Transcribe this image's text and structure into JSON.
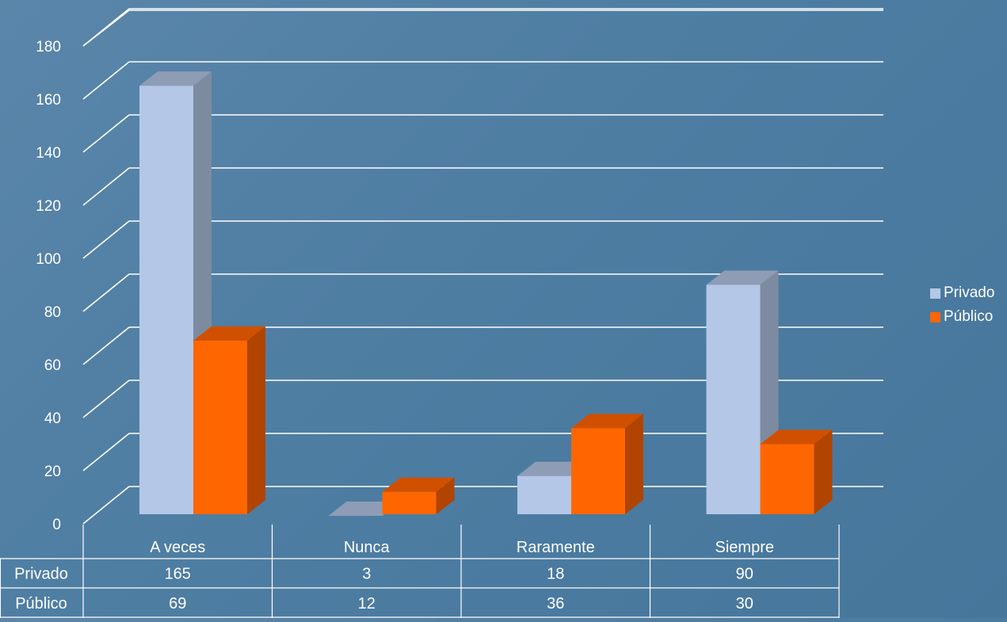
{
  "chart_data": {
    "type": "bar",
    "style": "3d-clustered-column",
    "categories": [
      "A veces",
      "Nunca",
      "Raramente",
      "Siempre"
    ],
    "series": [
      {
        "name": "Privado",
        "values": [
          165,
          3,
          18,
          90
        ],
        "color": "#b4c7e7",
        "side_color": "#7d8ba1",
        "top_color": "#8e9db5"
      },
      {
        "name": "Público",
        "values": [
          69,
          12,
          36,
          30
        ],
        "color": "#ff6600",
        "side_color": "#b04400",
        "top_color": "#d05000"
      }
    ],
    "y_ticks": [
      0,
      20,
      40,
      60,
      80,
      100,
      120,
      140,
      160,
      180
    ],
    "ylim": [
      0,
      180
    ],
    "grid": true,
    "legend_position": "right",
    "data_table": true,
    "colors": {
      "background": "#4f7ea3",
      "gridline": "#ffffff",
      "text": "#ffffff"
    }
  }
}
